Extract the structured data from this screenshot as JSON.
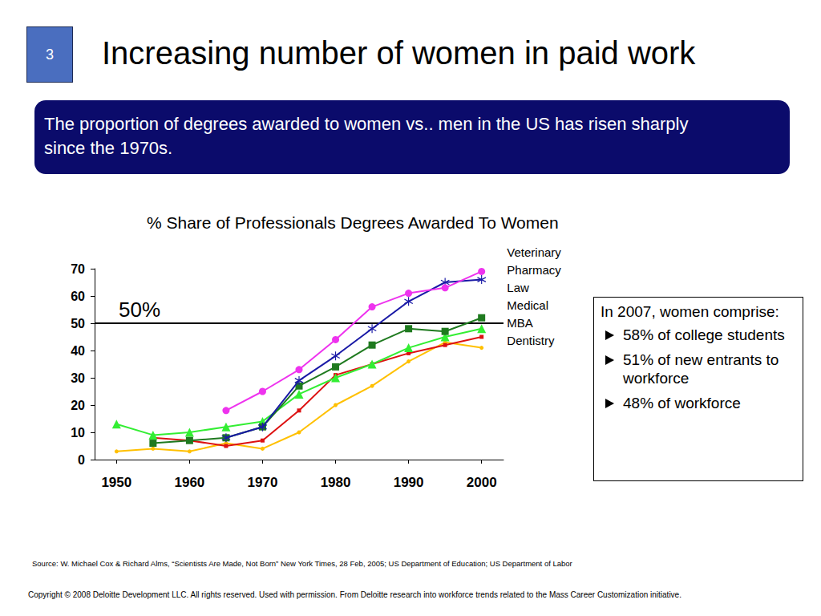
{
  "slide_number": "3",
  "title": "Increasing number of women in paid work",
  "banner": "The proportion of degrees awarded to women vs.. men in the US has risen sharply since the 1970s.",
  "chart_data": {
    "type": "line",
    "title": "% Share of Professionals Degrees Awarded To Women",
    "xlim": [
      1947,
      2003
    ],
    "xticks": [
      1950,
      1960,
      1970,
      1980,
      1990,
      2000
    ],
    "ylim": [
      0,
      70
    ],
    "yticks": [
      0,
      10,
      20,
      30,
      40,
      50,
      60,
      70
    ],
    "grid": false,
    "legend": "right",
    "annotations": [
      {
        "text": "50%",
        "y": 50
      }
    ],
    "series": [
      {
        "name": "Veterinary",
        "color": "#ee33ee",
        "marker": "circle",
        "x": [
          1965,
          1970,
          1975,
          1980,
          1985,
          1990,
          1995,
          2000
        ],
        "values": [
          18,
          25,
          33,
          44,
          56,
          61,
          63,
          69
        ]
      },
      {
        "name": "Pharmacy",
        "color": "#1a1aa6",
        "marker": "star",
        "x": [
          1965,
          1970,
          1975,
          1980,
          1985,
          1990,
          1995,
          2000
        ],
        "values": [
          8,
          12,
          29,
          38,
          48,
          58,
          65,
          66
        ]
      },
      {
        "name": "Law",
        "color": "#1f7a1f",
        "marker": "square",
        "x": [
          1955,
          1960,
          1965,
          1970,
          1975,
          1980,
          1985,
          1990,
          1995,
          2000
        ],
        "values": [
          6,
          7,
          8,
          12,
          27,
          34,
          42,
          48,
          47,
          52
        ]
      },
      {
        "name": "Medical",
        "color": "#33ee33",
        "marker": "triangle",
        "x": [
          1950,
          1955,
          1960,
          1965,
          1970,
          1975,
          1980,
          1985,
          1990,
          1995,
          2000
        ],
        "values": [
          13,
          9,
          10,
          12,
          14,
          24,
          30,
          35,
          41,
          45,
          48
        ]
      },
      {
        "name": "MBA",
        "color": "#dd1111",
        "marker": "small_square",
        "x": [
          1955,
          1960,
          1965,
          1970,
          1975,
          1980,
          1985,
          1990,
          1995,
          2000
        ],
        "values": [
          8,
          7,
          5,
          7,
          18,
          31,
          35,
          39,
          42,
          45
        ]
      },
      {
        "name": "Dentistry",
        "color": "#ffc000",
        "marker": "dot",
        "x": [
          1950,
          1955,
          1960,
          1965,
          1970,
          1975,
          1980,
          1985,
          1990,
          1995,
          2000
        ],
        "values": [
          3,
          4,
          3,
          6,
          4,
          10,
          20,
          27,
          36,
          43,
          41
        ]
      }
    ]
  },
  "sidebox": {
    "heading": "In 2007, women comprise:",
    "bullets": [
      "58% of college students",
      "51% of new entrants to workforce",
      "48% of workforce"
    ]
  },
  "source": "Source:  W. Michael Cox & Richard Alms, “Scientists Are Made, Not Born” New York Times, 28 Feb, 2005; US Department of Education; US Department of Labor",
  "copyright": "Copyright © 2008 Deloitte Development LLC. All rights reserved. Used with permission. From Deloitte research into workforce trends related to the Mass Career Customization initiative."
}
